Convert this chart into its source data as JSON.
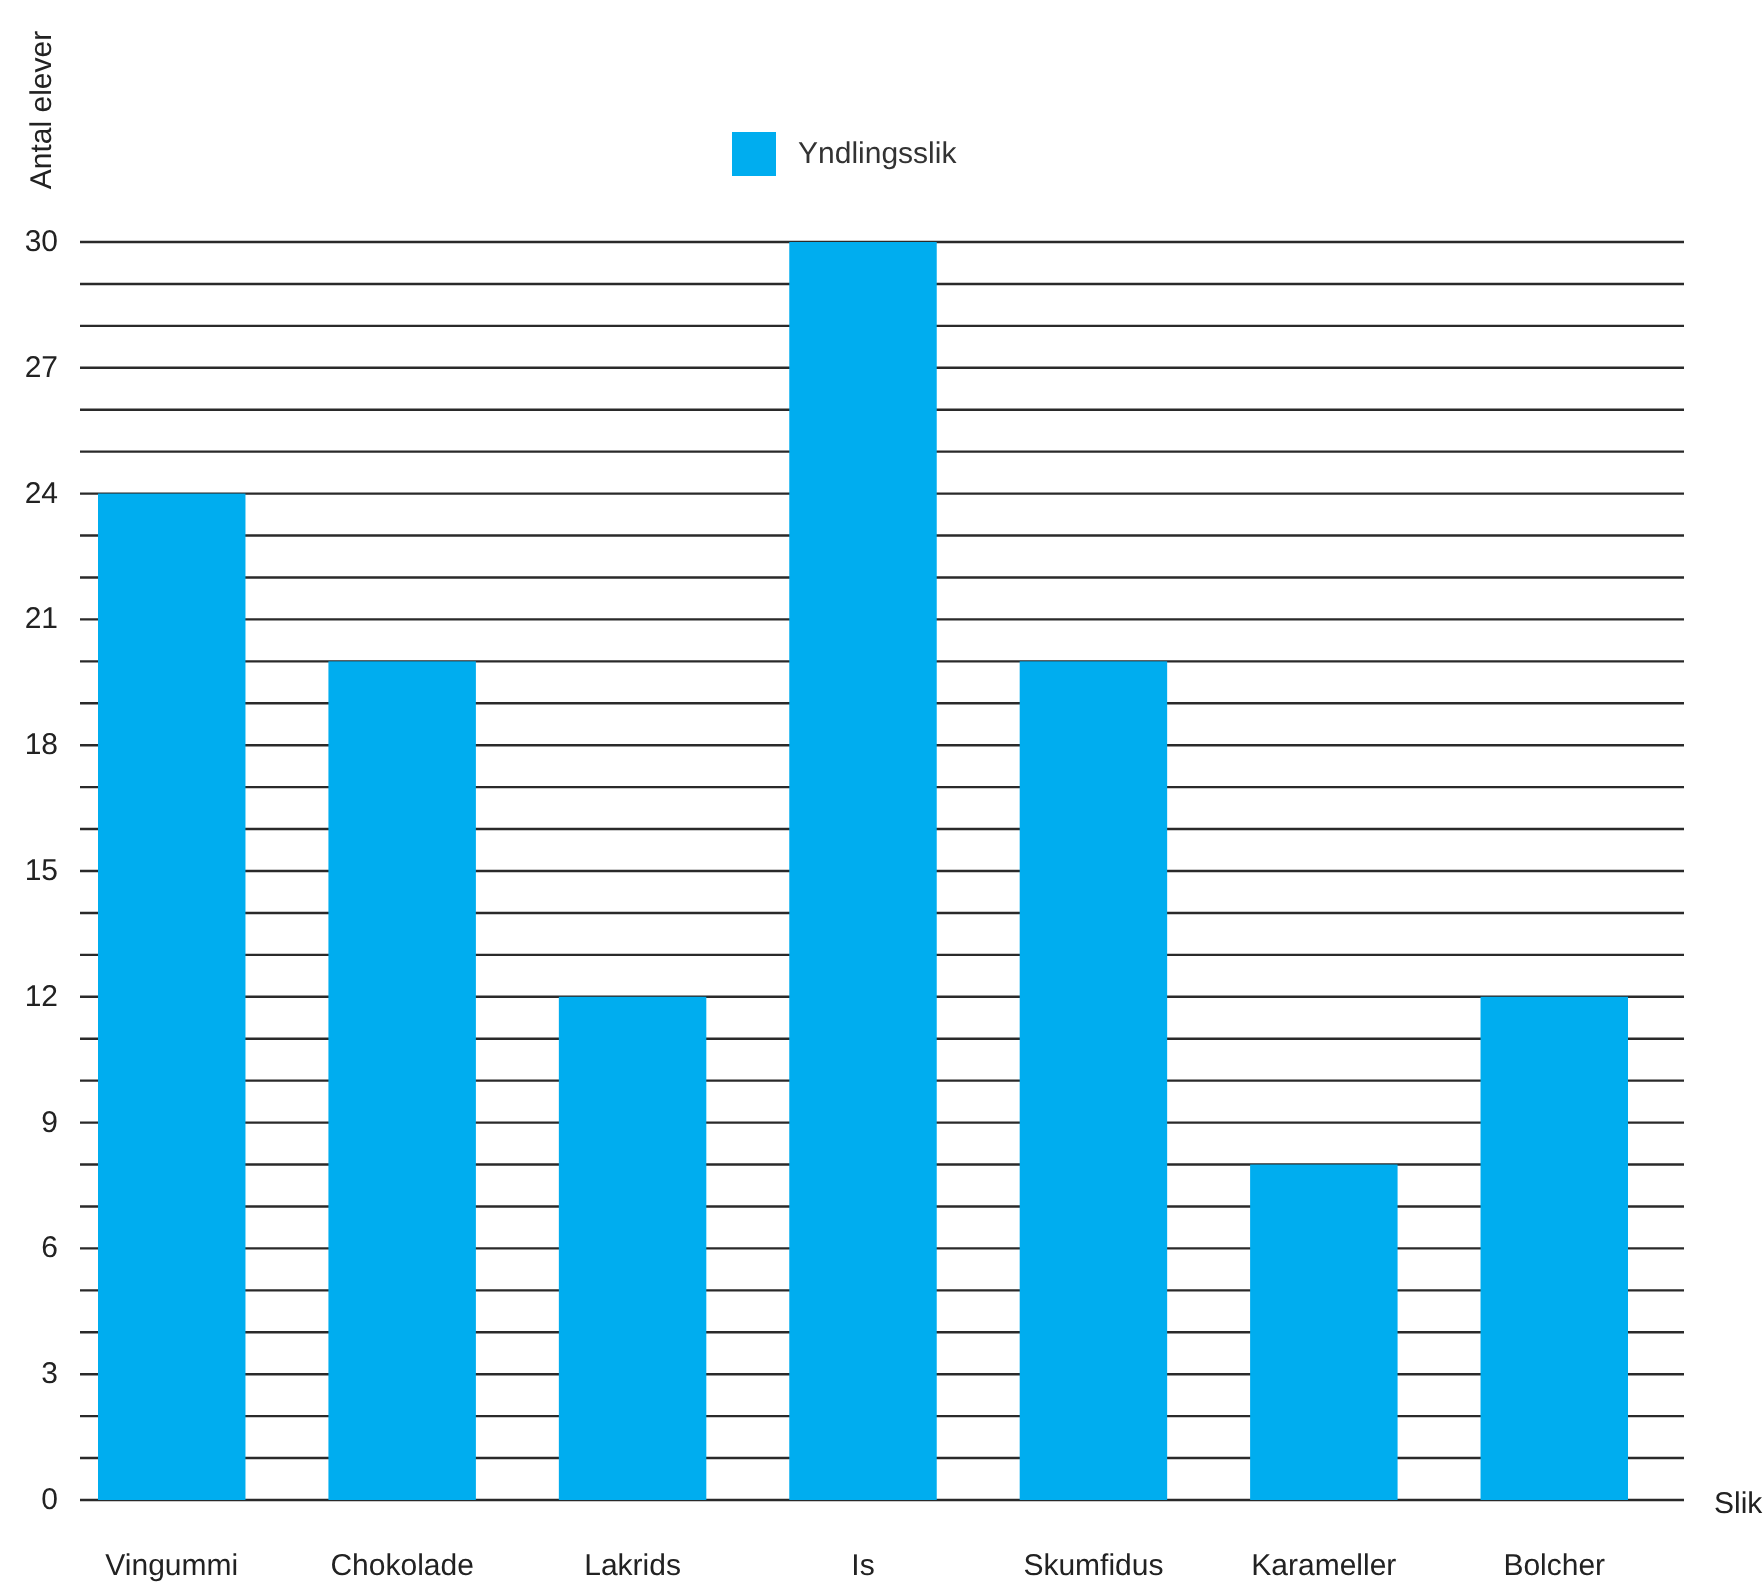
{
  "chart_data": {
    "type": "bar",
    "ylabel": "Antal elever",
    "xlabel": "Slik",
    "categories": [
      "Vingummi",
      "Chokolade",
      "Lakrids",
      "Is",
      "Skumfidus",
      "Karameller",
      "Bolcher"
    ],
    "series": [
      {
        "name": "Yndlingsslik",
        "color": "#00adef",
        "values": [
          24,
          20,
          12,
          30,
          20,
          8,
          12
        ]
      }
    ],
    "ylim": [
      0,
      30
    ],
    "yticks": [
      0,
      {
        "value": 1,
        "label": null
      },
      {
        "value": 2,
        "label": null
      },
      3,
      {
        "value": 4,
        "label": null
      },
      {
        "value": 5,
        "label": null
      },
      6,
      {
        "value": 7,
        "label": null
      },
      {
        "value": 8,
        "label": null
      },
      9,
      {
        "value": 10,
        "label": null
      },
      {
        "value": 11,
        "label": null
      },
      12,
      {
        "value": 13,
        "label": null
      },
      {
        "value": 14,
        "label": null
      },
      15,
      {
        "value": 16,
        "label": null
      },
      {
        "value": 17,
        "label": null
      },
      18,
      {
        "value": 19,
        "label": null
      },
      {
        "value": 20,
        "label": null
      },
      21,
      {
        "value": 22,
        "label": null
      },
      {
        "value": 23,
        "label": null
      },
      24,
      {
        "value": 25,
        "label": null
      },
      {
        "value": 26,
        "label": null
      },
      27,
      {
        "value": 28,
        "label": null
      },
      {
        "value": 29,
        "label": null
      },
      30
    ],
    "grid": "y",
    "legend": "top"
  }
}
